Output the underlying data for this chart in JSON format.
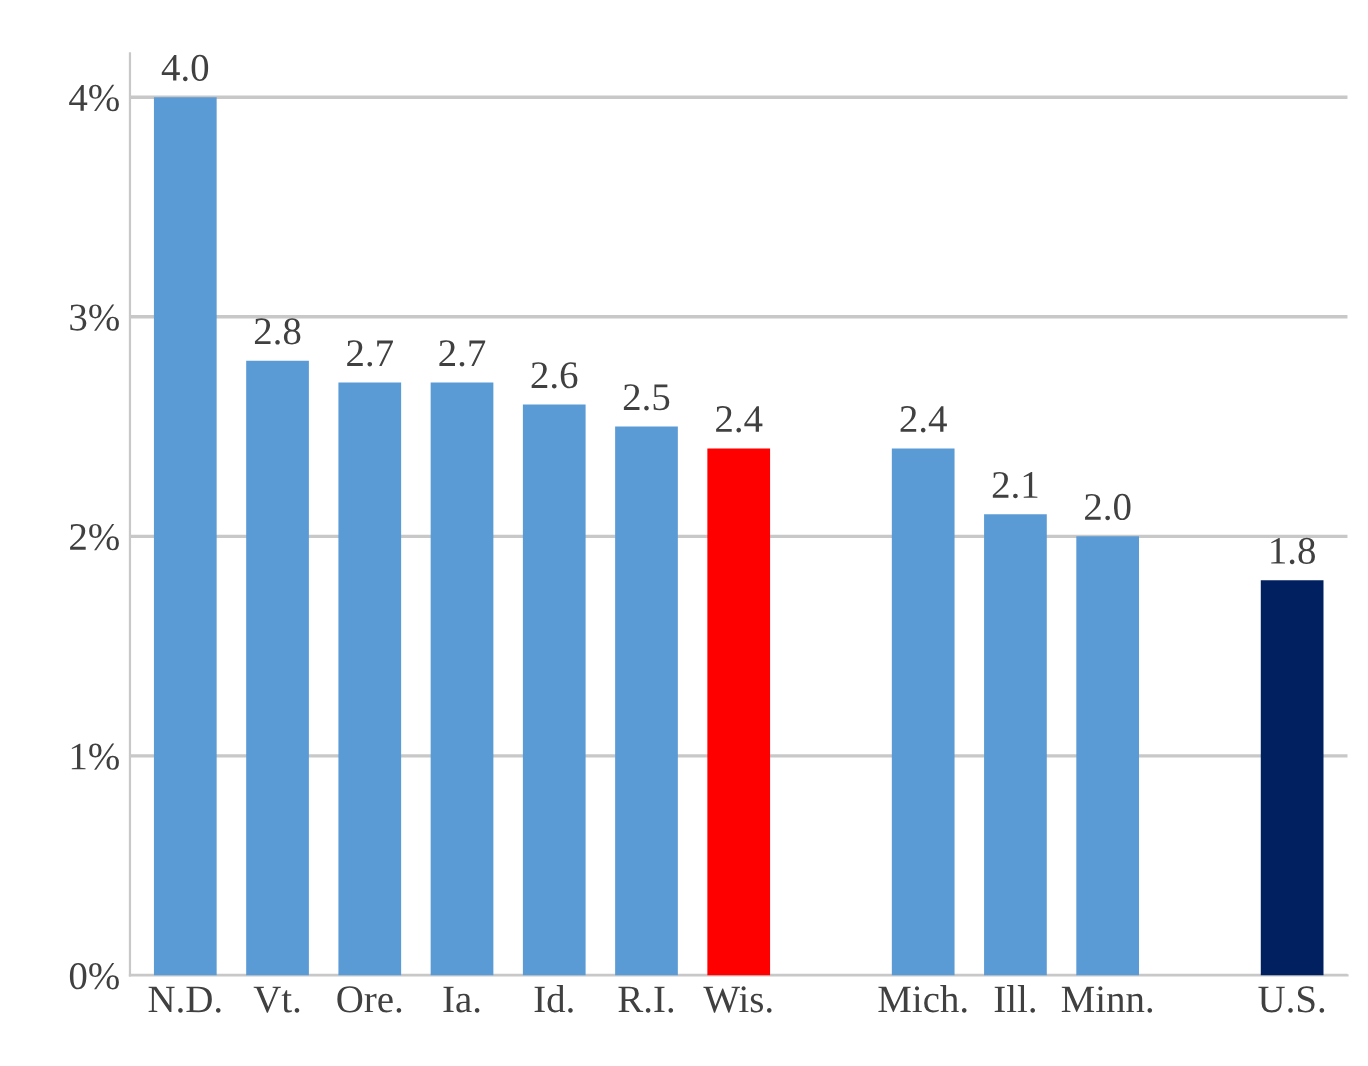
{
  "chart_data": {
    "type": "bar",
    "categories": [
      "N.D.",
      "Vt.",
      "Ore.",
      "Ia.",
      "Id.",
      "R.I.",
      "Wis.",
      null,
      "Mich.",
      "Ill.",
      "Minn.",
      null,
      "U.S."
    ],
    "values": [
      4.0,
      2.8,
      2.7,
      2.7,
      2.6,
      2.5,
      2.4,
      null,
      2.4,
      2.1,
      2.0,
      null,
      1.8
    ],
    "value_labels": [
      "4.0",
      "2.8",
      "2.7",
      "2.7",
      "2.6",
      "2.5",
      "2.4",
      null,
      "2.4",
      "2.1",
      "2.0",
      null,
      "1.8"
    ],
    "colors": [
      "#5b9bd5",
      "#5b9bd5",
      "#5b9bd5",
      "#5b9bd5",
      "#5b9bd5",
      "#5b9bd5",
      "#ff0000",
      null,
      "#5b9bd5",
      "#5b9bd5",
      "#5b9bd5",
      null,
      "#002060"
    ],
    "ylim": [
      0,
      4.2
    ],
    "yticks": [
      {
        "value": 0,
        "label": "0%"
      },
      {
        "value": 1,
        "label": "1%"
      },
      {
        "value": 2,
        "label": "2%"
      },
      {
        "value": 3,
        "label": "3%"
      },
      {
        "value": 4,
        "label": "4%"
      }
    ],
    "grid": "y",
    "legend": false
  }
}
